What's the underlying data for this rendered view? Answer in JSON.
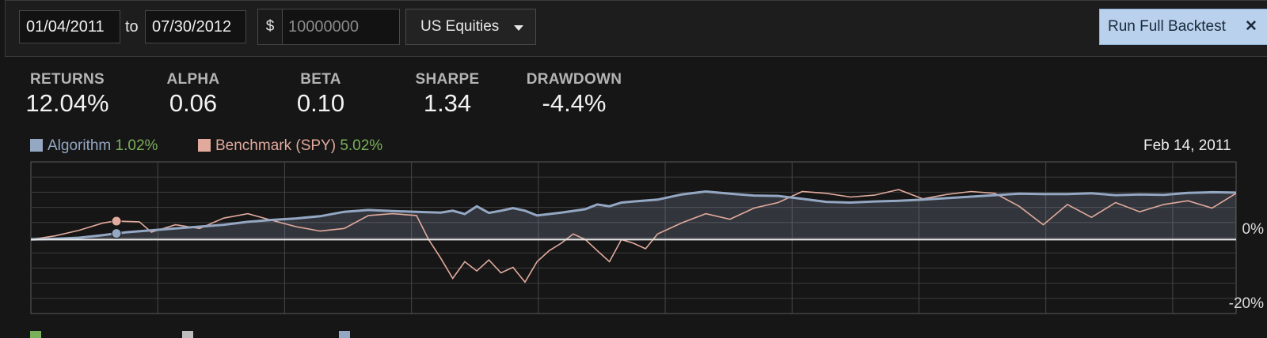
{
  "toolbar": {
    "start_date": "01/04/2011",
    "to_label": "to",
    "end_date": "07/30/2012",
    "currency_symbol": "$",
    "capital_placeholder": "10000000",
    "universe": "US Equities",
    "run_button": "Run Full Backtest"
  },
  "metrics": [
    {
      "label": "RETURNS",
      "value": "12.04%"
    },
    {
      "label": "ALPHA",
      "value": "0.06"
    },
    {
      "label": "BETA",
      "value": "0.10"
    },
    {
      "label": "SHARPE",
      "value": "1.34"
    },
    {
      "label": "DRAWDOWN",
      "value": "-4.4%"
    }
  ],
  "legend": {
    "algorithm_label": "Algorithm",
    "algorithm_value": "1.02%",
    "benchmark_label": "Benchmark (SPY)",
    "benchmark_value": "5.02%",
    "readout_date": "Feb 14, 2011"
  },
  "colors": {
    "algorithm": "#94a7c3",
    "benchmark": "#e2aa9d",
    "positive": "#79b05a",
    "accent_button": "#b9d1ec"
  },
  "chart_data": {
    "type": "line",
    "y_axis_labels": [
      "0%",
      "-20%"
    ],
    "ylim": [
      -20,
      21
    ],
    "x_range": [
      0,
      100
    ],
    "grid": true,
    "legend_position": "top-left",
    "hover_index_fraction": 0.071,
    "series": [
      {
        "name": "Algorithm",
        "x": [
          0,
          2,
          4,
          6,
          7,
          8,
          10,
          12,
          14,
          16,
          18,
          20,
          22,
          24,
          26,
          28,
          30,
          32,
          34,
          35,
          36,
          37,
          38,
          39,
          40,
          41,
          42,
          44,
          46,
          47,
          48,
          49,
          50,
          52,
          54,
          56,
          58,
          60,
          62,
          64,
          66,
          68,
          70,
          72,
          74,
          76,
          78,
          80,
          82,
          84,
          86,
          88,
          90,
          92,
          94,
          96,
          98,
          100
        ],
        "values": [
          0,
          0.2,
          0.5,
          1.2,
          1.6,
          2.0,
          2.5,
          3.0,
          3.5,
          4.0,
          4.8,
          5.3,
          5.7,
          6.3,
          7.5,
          8.0,
          7.7,
          7.5,
          7.3,
          7.8,
          6.9,
          9.0,
          7.2,
          7.8,
          8.5,
          7.8,
          6.5,
          7.3,
          8.2,
          9.5,
          9.0,
          10.0,
          10.3,
          10.8,
          12.2,
          13.0,
          12.4,
          11.9,
          11.8,
          11.0,
          10.2,
          10.0,
          10.3,
          10.5,
          10.8,
          11.2,
          11.6,
          12.0,
          12.4,
          12.3,
          12.3,
          12.5,
          12.0,
          12.2,
          12.1,
          12.6,
          12.8,
          12.7
        ]
      },
      {
        "name": "Benchmark (SPY)",
        "x": [
          0,
          2,
          4,
          6,
          7,
          9,
          10,
          12,
          14,
          16,
          18,
          20,
          22,
          24,
          26,
          28,
          30,
          32,
          33,
          34,
          35,
          36,
          37,
          38,
          39,
          40,
          41,
          42,
          43,
          44,
          45,
          46,
          47,
          48,
          49,
          50,
          51,
          52,
          54,
          56,
          58,
          60,
          62,
          64,
          66,
          68,
          70,
          72,
          74,
          76,
          78,
          80,
          82,
          84,
          86,
          88,
          90,
          92,
          94,
          96,
          98,
          100
        ],
        "values": [
          0,
          1.0,
          2.5,
          4.5,
          5.0,
          4.8,
          2.0,
          4.0,
          3.0,
          5.8,
          7.0,
          5.2,
          3.5,
          2.3,
          3.0,
          6.5,
          7.0,
          6.5,
          0,
          -5.0,
          -10.5,
          -6.0,
          -8.5,
          -5.5,
          -9.0,
          -7.5,
          -11.5,
          -6.0,
          -3.0,
          -1.0,
          1.5,
          0.0,
          -3.0,
          -6.0,
          0.0,
          -1.0,
          -2.5,
          1.5,
          4.5,
          7.0,
          5.5,
          8.5,
          10.0,
          13.0,
          12.5,
          11.5,
          12.0,
          13.5,
          11.0,
          12.2,
          13.0,
          12.5,
          9.0,
          4.0,
          9.5,
          6.0,
          10.0,
          7.5,
          9.5,
          10.5,
          8.5,
          12.5
        ]
      }
    ]
  }
}
